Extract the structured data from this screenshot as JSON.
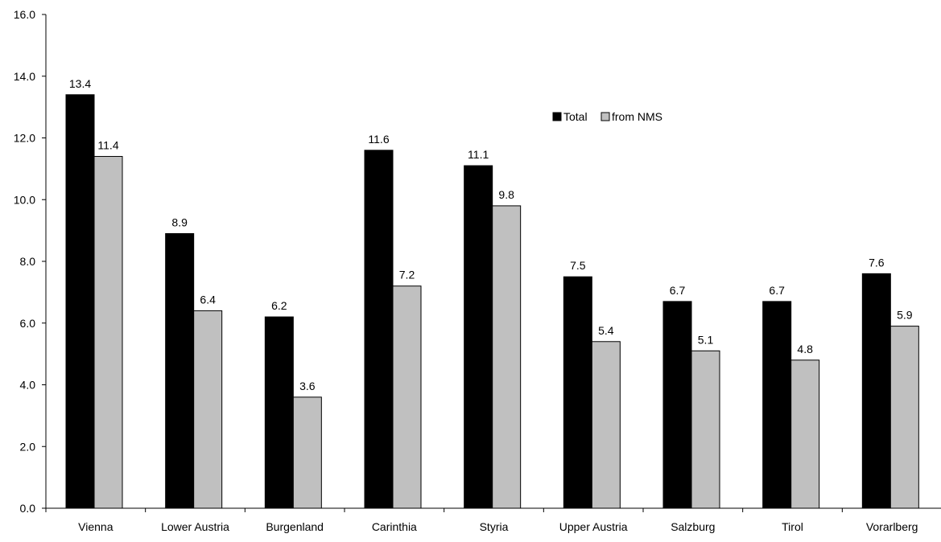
{
  "chart_data": {
    "type": "bar",
    "title": "",
    "xlabel": "",
    "ylabel": "",
    "categories": [
      "Vienna",
      "Lower Austria",
      "Burgenland",
      "Carinthia",
      "Styria",
      "Upper Austria",
      "Salzburg",
      "Tirol",
      "Vorarlberg"
    ],
    "series": [
      {
        "name": "Total",
        "color": "#000000",
        "values": [
          13.4,
          8.9,
          6.2,
          11.6,
          11.1,
          7.5,
          6.7,
          6.7,
          7.6
        ],
        "labels": [
          "13.4",
          "8.9",
          "6.2",
          "11.6",
          "11.1",
          "7.5",
          "6.7",
          "6.7",
          "7.6"
        ]
      },
      {
        "name": "from NMS",
        "color": "#c0c0c0",
        "values": [
          11.4,
          6.4,
          3.6,
          7.2,
          9.8,
          5.4,
          5.1,
          4.8,
          5.9
        ],
        "labels": [
          "11.4",
          "6.4",
          "3.6",
          "7.2",
          "9.8",
          "5.4",
          "5.1",
          "4.8",
          "5.9"
        ]
      }
    ],
    "ylim": [
      0,
      16
    ],
    "yticks": [
      "0.0",
      "2.0",
      "4.0",
      "6.0",
      "8.0",
      "10.0",
      "12.0",
      "14.0",
      "16.0"
    ],
    "grid": false,
    "legend_position": "top-right"
  }
}
